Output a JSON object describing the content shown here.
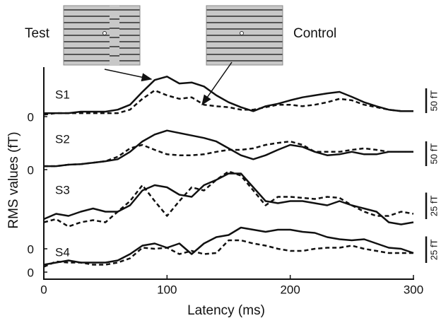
{
  "chart_data": {
    "type": "line",
    "xlabel": "Latency (ms)",
    "ylabel": "RMS values (fT)",
    "annotations": [
      "Test",
      "Control"
    ],
    "xlim": [
      0,
      300
    ],
    "xticks": [
      0,
      100,
      200,
      300
    ],
    "x": [
      0,
      10,
      20,
      30,
      40,
      50,
      60,
      70,
      80,
      90,
      100,
      110,
      120,
      130,
      140,
      150,
      160,
      170,
      180,
      190,
      200,
      210,
      220,
      230,
      240,
      250,
      260,
      270,
      280,
      290,
      300
    ],
    "panels": [
      {
        "label": "S1",
        "ylim": [
          0,
          85
        ],
        "yticks": [
          0
        ],
        "scale_bar": {
          "value": 50,
          "label": "50 fT"
        },
        "series": [
          {
            "style": "solid",
            "color": "#111111",
            "values": [
              7,
              7,
              7,
              10,
              10,
              10,
              14,
              24,
              50,
              74,
              81,
              67,
              69,
              61,
              43,
              29,
              19,
              11,
              21,
              26,
              33,
              39,
              43,
              47,
              50,
              40,
              29,
              21,
              14,
              11,
              11
            ]
          },
          {
            "style": "dashed",
            "color": "#111111",
            "values": [
              4,
              7,
              7,
              7,
              7,
              7,
              7,
              14,
              36,
              53,
              43,
              36,
              39,
              24,
              21,
              19,
              14,
              14,
              19,
              24,
              24,
              21,
              24,
              29,
              36,
              33,
              24,
              19,
              14,
              11,
              11
            ]
          }
        ]
      },
      {
        "label": "S2",
        "ylim": [
          0,
          85
        ],
        "yticks": [
          0
        ],
        "scale_bar": {
          "value": 50,
          "label": "50 fT"
        },
        "series": [
          {
            "style": "solid",
            "color": "#111111",
            "values": [
              7,
              7,
              10,
              11,
              14,
              17,
              21,
              36,
              57,
              71,
              79,
              74,
              69,
              64,
              57,
              43,
              29,
              21,
              29,
              40,
              50,
              46,
              36,
              29,
              31,
              36,
              31,
              31,
              36,
              36,
              36
            ]
          },
          {
            "style": "dashed",
            "color": "#111111",
            "values": [
              7,
              7,
              10,
              11,
              14,
              17,
              26,
              43,
              50,
              40,
              31,
              29,
              29,
              31,
              36,
              40,
              40,
              43,
              50,
              54,
              57,
              50,
              36,
              36,
              36,
              40,
              43,
              40,
              36,
              36,
              36
            ]
          }
        ]
      },
      {
        "label": "S3",
        "ylim": [
          0,
          78
        ],
        "yticks": [
          0
        ],
        "scale_bar": {
          "value": 25,
          "label": "25 fT"
        },
        "series": [
          {
            "style": "solid",
            "color": "#111111",
            "values": [
              28,
              33,
              31,
              35,
              38,
              35,
              35,
              41,
              55,
              60,
              58,
              51,
              49,
              60,
              65,
              71,
              71,
              58,
              45,
              43,
              45,
              45,
              43,
              41,
              45,
              41,
              38,
              35,
              25,
              23,
              25
            ]
          },
          {
            "style": "dashed",
            "color": "#111111",
            "values": [
              25,
              28,
              21,
              25,
              27,
              25,
              35,
              45,
              60,
              45,
              31,
              45,
              58,
              55,
              65,
              73,
              69,
              55,
              41,
              49,
              49,
              48,
              47,
              49,
              48,
              41,
              35,
              31,
              31,
              35,
              33
            ]
          }
        ]
      },
      {
        "label": "S4",
        "ylim": [
          0,
          45
        ],
        "yticks": [
          0
        ],
        "scale_bar": {
          "value": 25,
          "label": "25 fT"
        },
        "series": [
          {
            "style": "solid",
            "color": "#111111",
            "values": [
              7,
              9,
              11,
              9,
              9,
              9,
              11,
              17,
              25,
              27,
              23,
              27,
              17,
              27,
              33,
              35,
              42,
              40,
              38,
              40,
              40,
              38,
              37,
              33,
              31,
              30,
              31,
              27,
              23,
              22,
              18
            ]
          },
          {
            "style": "dashed",
            "color": "#111111",
            "values": [
              5,
              10,
              9,
              9,
              7,
              7,
              9,
              13,
              23,
              22,
              23,
              17,
              20,
              17,
              18,
              30,
              30,
              27,
              25,
              22,
              20,
              20,
              22,
              23,
              23,
              25,
              22,
              20,
              18,
              18,
              18
            ]
          }
        ]
      }
    ]
  }
}
